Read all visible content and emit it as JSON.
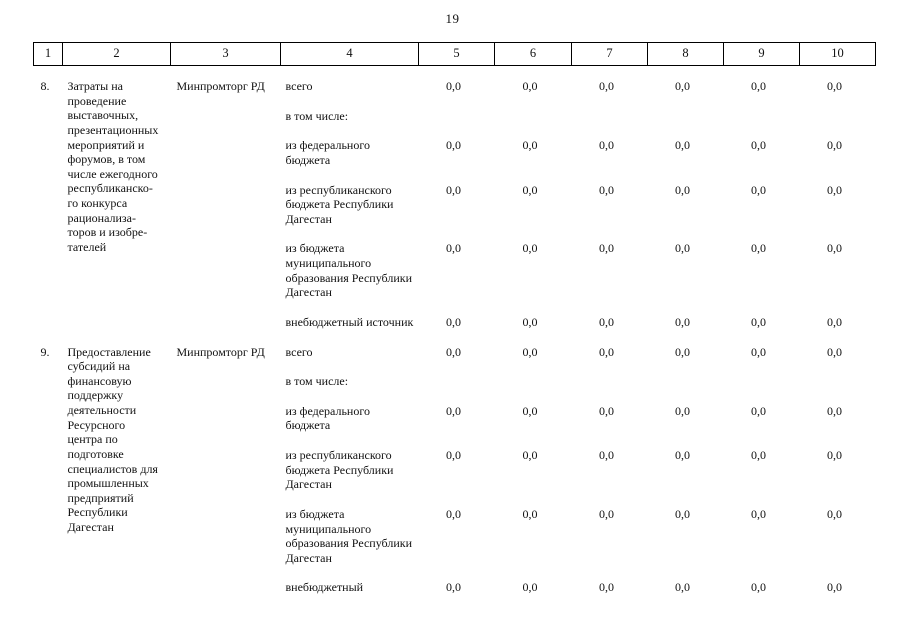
{
  "page": {
    "number": "19"
  },
  "table": {
    "column_numbers": [
      "1",
      "2",
      "3",
      "4",
      "5",
      "6",
      "7",
      "8",
      "9",
      "10"
    ],
    "sections": [
      {
        "num": "8.",
        "title": "Затраты на проведение выставочных, презентационных мероприятий и форумов, в том числе ежегодного республиканско-го конкурса рационализа-торов и изобре-тателей",
        "agency": "Минпромторг РД",
        "rows": [
          {
            "label": "всего",
            "values": [
              "0,0",
              "0,0",
              "0,0",
              "0,0",
              "0,0",
              "0,0"
            ]
          },
          {
            "label": "в том числе:",
            "values": [
              "",
              "",
              "",
              "",
              "",
              ""
            ]
          },
          {
            "label": "из федерального бюджета",
            "values": [
              "0,0",
              "0,0",
              "0,0",
              "0,0",
              "0,0",
              "0,0"
            ]
          },
          {
            "label": "из республиканского бюджета Республики Дагестан",
            "values": [
              "0,0",
              "0,0",
              "0,0",
              "0,0",
              "0,0",
              "0,0"
            ]
          },
          {
            "label": "из бюджета муниципального образования Республики Дагестан",
            "values": [
              "0,0",
              "0,0",
              "0,0",
              "0,0",
              "0,0",
              "0,0"
            ]
          },
          {
            "label": "внебюджетный источник",
            "values": [
              "0,0",
              "0,0",
              "0,0",
              "0,0",
              "0,0",
              "0,0"
            ]
          }
        ]
      },
      {
        "num": "9.",
        "title": "Предоставление субсидий на финансовую поддержку деятельности Ресурсного центра по подготовке специалистов для промышленных предприятий Республики Дагестан",
        "agency": "Минпромторг РД",
        "rows": [
          {
            "label": "всего",
            "values": [
              "0,0",
              "0,0",
              "0,0",
              "0,0",
              "0,0",
              "0,0"
            ]
          },
          {
            "label": "в том числе:",
            "values": [
              "",
              "",
              "",
              "",
              "",
              ""
            ]
          },
          {
            "label": "из федерального бюджета",
            "values": [
              "0,0",
              "0,0",
              "0,0",
              "0,0",
              "0,0",
              "0,0"
            ]
          },
          {
            "label": "из республиканского бюджета Республики Дагестан",
            "values": [
              "0,0",
              "0,0",
              "0,0",
              "0,0",
              "0,0",
              "0,0"
            ]
          },
          {
            "label": "из бюджета муниципального образования Республики Дагестан",
            "values": [
              "0,0",
              "0,0",
              "0,0",
              "0,0",
              "0,0",
              "0,0"
            ]
          },
          {
            "label": "внебюджетный",
            "values": [
              "0,0",
              "0,0",
              "0,0",
              "0,0",
              "0,0",
              "0,0"
            ]
          }
        ]
      }
    ]
  }
}
